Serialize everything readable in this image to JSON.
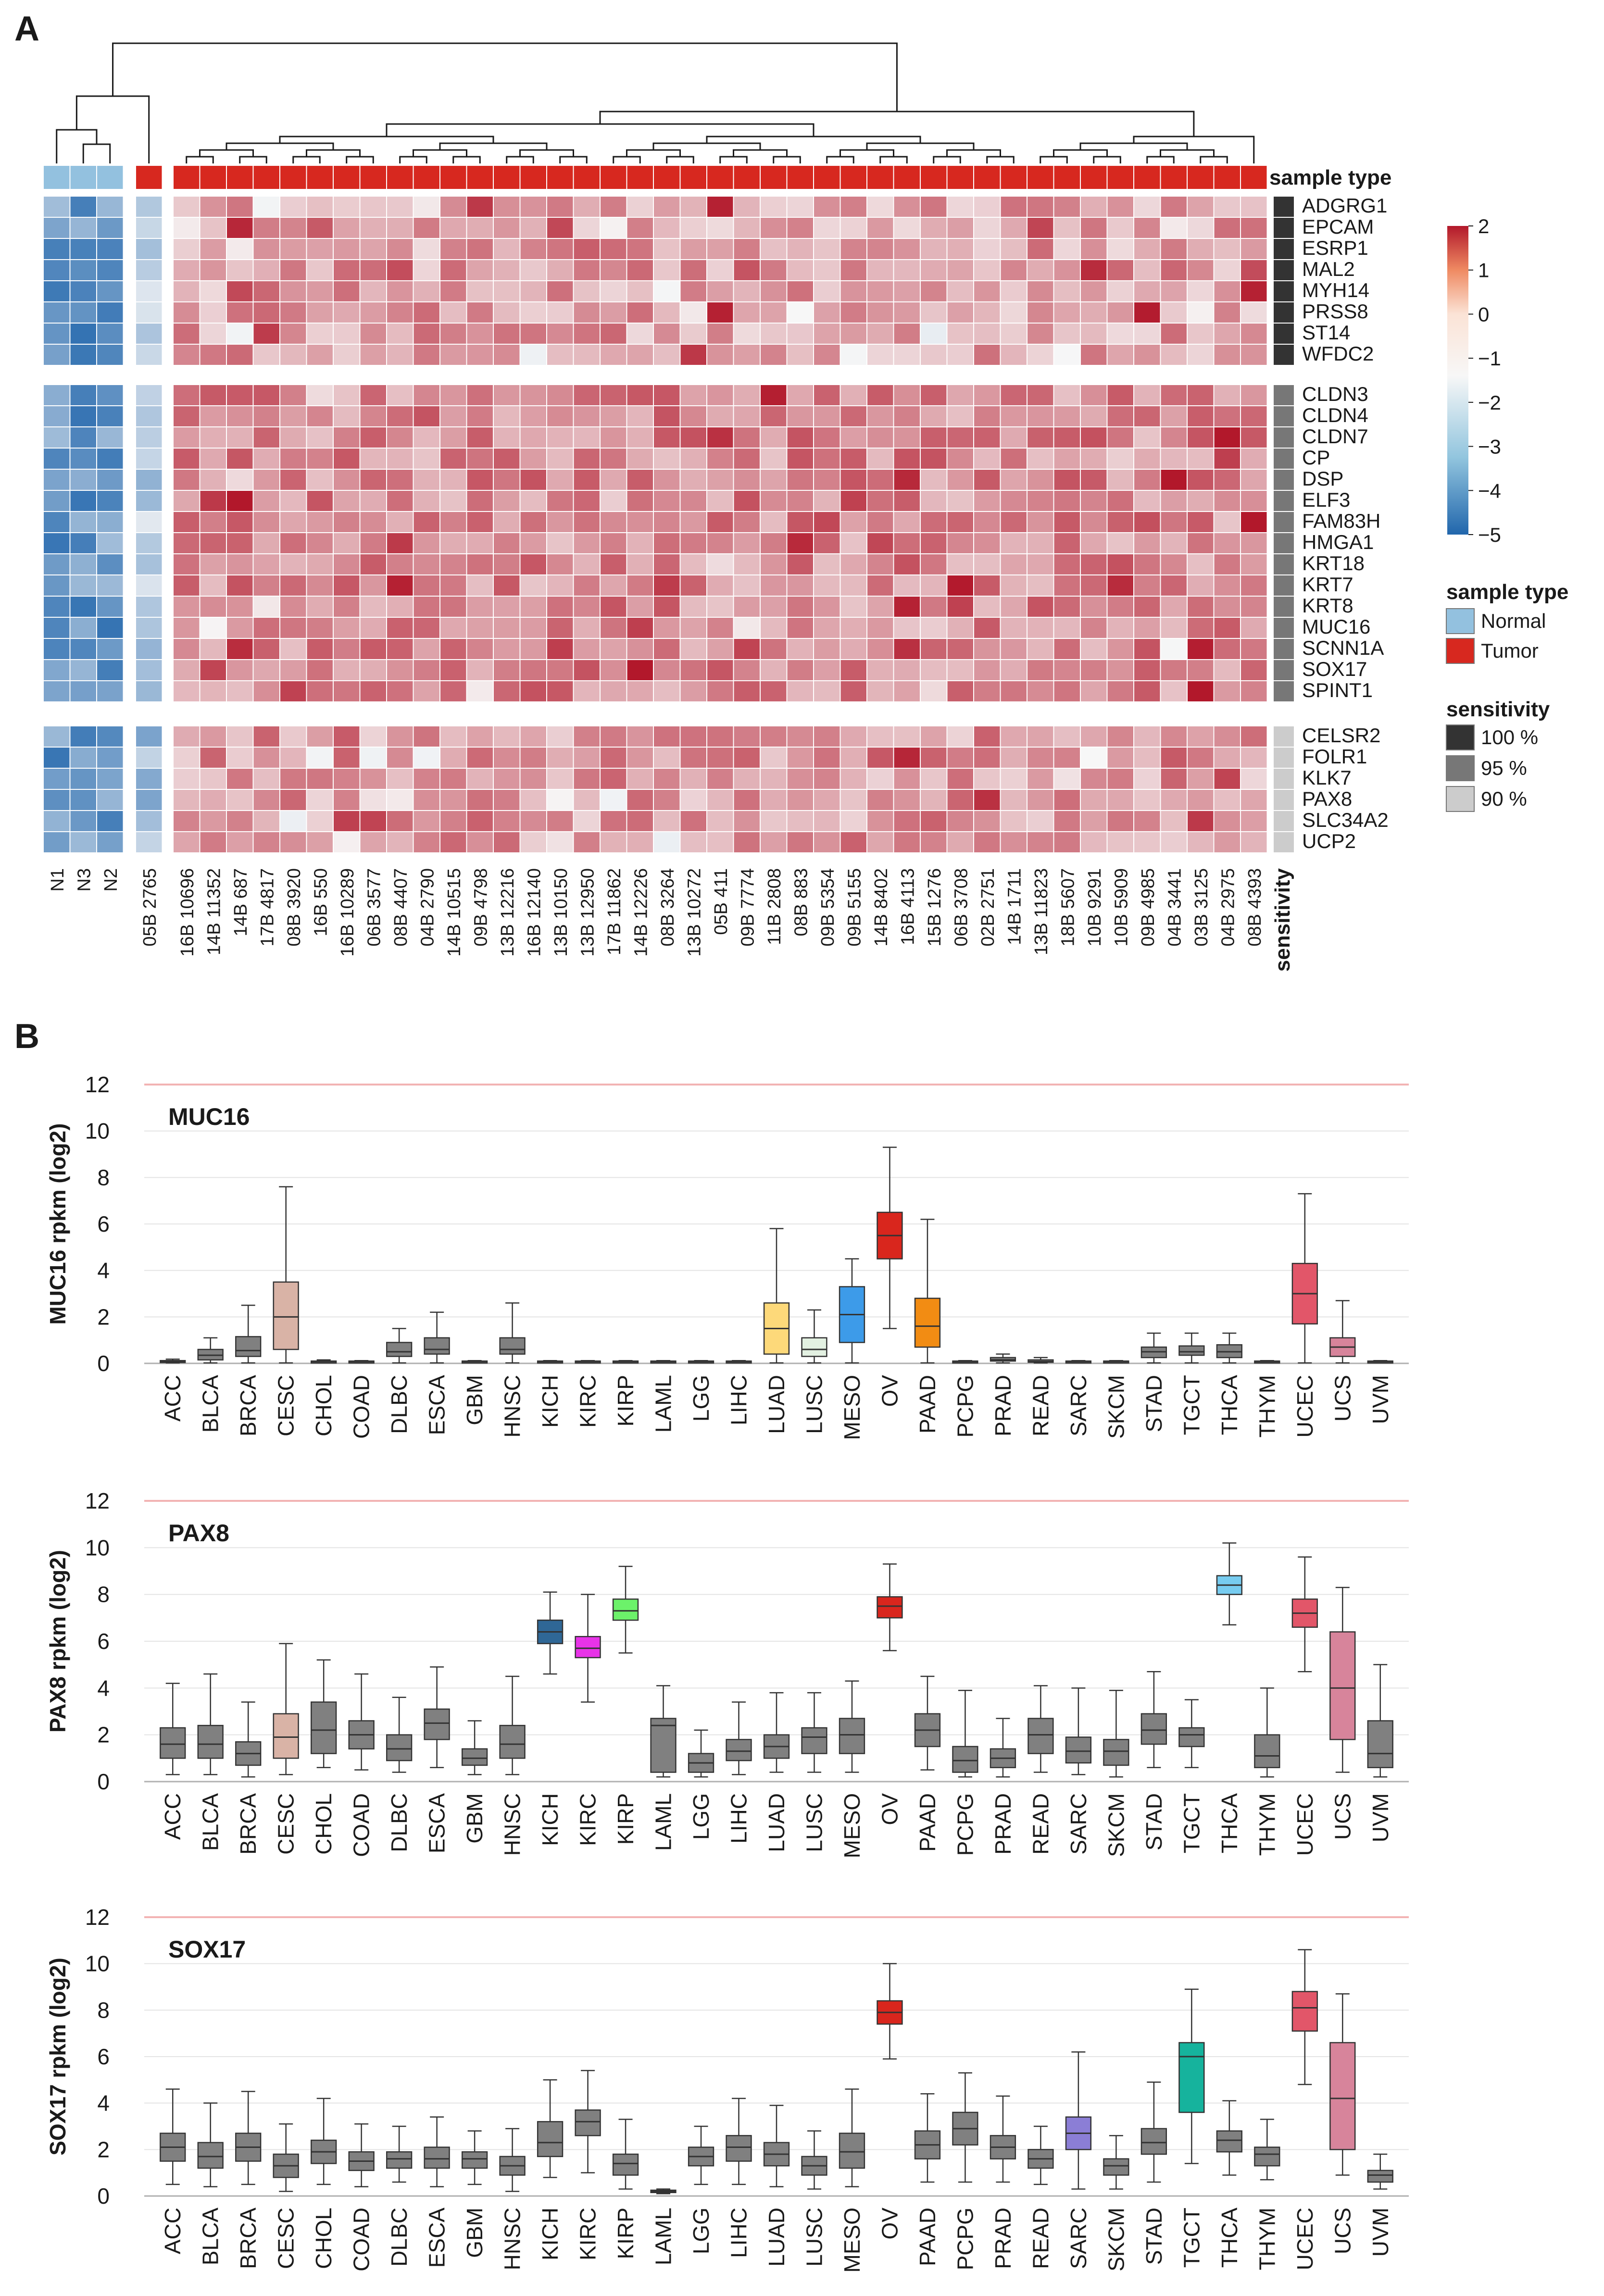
{
  "panels": {
    "a": "A",
    "b": "B"
  },
  "chart_data": [
    {
      "type": "heatmap",
      "panel": "A",
      "title": "",
      "annotation_track_label": "sample type",
      "sensitivity_axis_label": "sensitivity",
      "columns": [
        "N1",
        "N3",
        "N2",
        "05B 2765",
        "16B 10696",
        "14B 11352",
        "14B 687",
        "17B 4817",
        "08B 3920",
        "16B 550",
        "16B 10289",
        "06B 3577",
        "08B 4407",
        "04B 2790",
        "14B 10515",
        "09B 4798",
        "13B 12216",
        "16B 12140",
        "13B 10150",
        "13B 12950",
        "17B 11862",
        "14B 12226",
        "08B 3264",
        "13B 10272",
        "05B 411",
        "09B 7774",
        "11B 2808",
        "08B 883",
        "09B 5354",
        "09B 5155",
        "14B 8402",
        "16B 4113",
        "15B 1276",
        "06B 3708",
        "02B 2751",
        "14B 1711",
        "13B 11823",
        "18B 5607",
        "10B 9291",
        "10B 5909",
        "09B 4985",
        "04B 3441",
        "03B 3125",
        "04B 2975",
        "08B 4393"
      ],
      "column_groups": [
        3,
        1,
        41
      ],
      "sample_types": [
        "Normal",
        "Normal",
        "Normal",
        "Tumor",
        "Tumor",
        "Tumor",
        "Tumor",
        "Tumor",
        "Tumor",
        "Tumor",
        "Tumor",
        "Tumor",
        "Tumor",
        "Tumor",
        "Tumor",
        "Tumor",
        "Tumor",
        "Tumor",
        "Tumor",
        "Tumor",
        "Tumor",
        "Tumor",
        "Tumor",
        "Tumor",
        "Tumor",
        "Tumor",
        "Tumor",
        "Tumor",
        "Tumor",
        "Tumor",
        "Tumor",
        "Tumor",
        "Tumor",
        "Tumor",
        "Tumor",
        "Tumor",
        "Tumor",
        "Tumor",
        "Tumor",
        "Tumor",
        "Tumor",
        "Tumor",
        "Tumor",
        "Tumor",
        "Tumor"
      ],
      "row_groups": [
        {
          "sensitivity": "100 %",
          "genes": [
            "ADGRG1",
            "EPCAM",
            "ESRP1",
            "MAL2",
            "MYH14",
            "PRSS8",
            "ST14",
            "WFDC2"
          ]
        },
        {
          "sensitivity": "95 %",
          "genes": [
            "CLDN3",
            "CLDN4",
            "CLDN7",
            "CP",
            "DSP",
            "ELF3",
            "FAM83H",
            "HMGA1",
            "KRT18",
            "KRT7",
            "KRT8",
            "MUC16",
            "SCNN1A",
            "SOX17",
            "SPINT1"
          ]
        },
        {
          "sensitivity": "90 %",
          "genes": [
            "CELSR2",
            "FOLR1",
            "KLK7",
            "PAX8",
            "SLC34A2",
            "UCP2"
          ]
        }
      ],
      "color_scale": {
        "min": -5,
        "max": 2,
        "ticks": [
          "2",
          "1",
          "0",
          "−1",
          "−2",
          "−3",
          "−4",
          "−5"
        ],
        "low_color": "#2166ac",
        "mid_color": "#f7f7f7",
        "high_color": "#b2182b"
      },
      "value_summary": "Normal samples z-score about -2 to -4.5; sample 05B 2765 about -0.5 to -2.5; tumor samples mostly 0 to 2",
      "legend": {
        "sample_type_title": "sample type",
        "sample_type_entries": [
          {
            "label": "Normal",
            "color": "#93c1df"
          },
          {
            "label": "Tumor",
            "color": "#d7281f"
          }
        ],
        "sensitivity_title": "sensitivity",
        "sensitivity_entries": [
          {
            "label": "100 %",
            "color": "#333333"
          },
          {
            "label": "95 %",
            "color": "#777777"
          },
          {
            "label": "90 %",
            "color": "#cccccc"
          }
        ]
      }
    },
    {
      "type": "box",
      "panel": "B",
      "title": "MUC16",
      "ylabel": "MUC16 rpkm (log2)",
      "ylim": [
        0,
        12
      ],
      "yticks": [
        0,
        2,
        4,
        6,
        8,
        10,
        12
      ],
      "categories": [
        "ACC",
        "BLCA",
        "BRCA",
        "CESC",
        "CHOL",
        "COAD",
        "DLBC",
        "ESCA",
        "GBM",
        "HNSC",
        "KICH",
        "KIRC",
        "KIRP",
        "LAML",
        "LGG",
        "LIHC",
        "LUAD",
        "LUSC",
        "MESO",
        "OV",
        "PAAD",
        "PCPG",
        "PRAD",
        "READ",
        "SARC",
        "SKCM",
        "STAD",
        "TGCT",
        "THCA",
        "THYM",
        "UCEC",
        "UCS",
        "UVM"
      ],
      "boxes": [
        [
          0.02,
          0.05,
          0.08,
          0.12,
          0.18
        ],
        [
          0.02,
          0.15,
          0.35,
          0.6,
          1.1
        ],
        [
          0.02,
          0.3,
          0.55,
          1.15,
          2.5
        ],
        [
          0.02,
          0.6,
          2.0,
          3.5,
          7.6
        ],
        [
          0.02,
          0.05,
          0.08,
          0.1,
          0.15
        ],
        [
          0.02,
          0.05,
          0.08,
          0.1,
          0.12
        ],
        [
          0.02,
          0.3,
          0.5,
          0.9,
          1.5
        ],
        [
          0.02,
          0.4,
          0.6,
          1.1,
          2.2
        ],
        [
          0.02,
          0.05,
          0.08,
          0.1,
          0.12
        ],
        [
          0.02,
          0.4,
          0.6,
          1.1,
          2.6
        ],
        [
          0.02,
          0.05,
          0.08,
          0.1,
          0.12
        ],
        [
          0.02,
          0.05,
          0.08,
          0.1,
          0.12
        ],
        [
          0.02,
          0.05,
          0.08,
          0.1,
          0.12
        ],
        [
          0.02,
          0.05,
          0.08,
          0.1,
          0.12
        ],
        [
          0.02,
          0.05,
          0.08,
          0.1,
          0.12
        ],
        [
          0.02,
          0.05,
          0.08,
          0.1,
          0.12
        ],
        [
          0.02,
          0.4,
          1.5,
          2.6,
          5.8
        ],
        [
          0.02,
          0.3,
          0.6,
          1.1,
          2.3
        ],
        [
          0.02,
          0.9,
          2.1,
          3.3,
          4.5
        ],
        [
          1.5,
          4.5,
          5.5,
          6.5,
          9.3
        ],
        [
          0.02,
          0.7,
          1.6,
          2.8,
          6.2
        ],
        [
          0.02,
          0.05,
          0.08,
          0.1,
          0.12
        ],
        [
          0.02,
          0.1,
          0.15,
          0.25,
          0.4
        ],
        [
          0.02,
          0.05,
          0.08,
          0.15,
          0.25
        ],
        [
          0.02,
          0.05,
          0.08,
          0.1,
          0.12
        ],
        [
          0.02,
          0.05,
          0.08,
          0.1,
          0.12
        ],
        [
          0.02,
          0.25,
          0.5,
          0.7,
          1.3
        ],
        [
          0.02,
          0.35,
          0.5,
          0.75,
          1.3
        ],
        [
          0.02,
          0.25,
          0.5,
          0.8,
          1.3
        ],
        [
          0.02,
          0.05,
          0.08,
          0.1,
          0.12
        ],
        [
          0.02,
          1.7,
          3.0,
          4.3,
          7.3
        ],
        [
          0.02,
          0.3,
          0.7,
          1.1,
          2.7
        ],
        [
          0.02,
          0.05,
          0.08,
          0.1,
          0.12
        ]
      ],
      "colors": [
        "#808080",
        "#808080",
        "#808080",
        "#d9b3a6",
        "#808080",
        "#808080",
        "#808080",
        "#808080",
        "#808080",
        "#808080",
        "#808080",
        "#808080",
        "#808080",
        "#808080",
        "#808080",
        "#808080",
        "#fdd97a",
        "#e3f1e2",
        "#3d9be9",
        "#d9261d",
        "#f28c13",
        "#808080",
        "#808080",
        "#808080",
        "#808080",
        "#808080",
        "#808080",
        "#808080",
        "#808080",
        "#808080",
        "#e25669",
        "#d7849b",
        "#808080"
      ]
    },
    {
      "type": "box",
      "panel": "B",
      "title": "PAX8",
      "ylabel": "PAX8 rpkm (log2)",
      "ylim": [
        0,
        12
      ],
      "yticks": [
        0,
        2,
        4,
        6,
        8,
        10,
        12
      ],
      "categories": [
        "ACC",
        "BLCA",
        "BRCA",
        "CESC",
        "CHOL",
        "COAD",
        "DLBC",
        "ESCA",
        "GBM",
        "HNSC",
        "KICH",
        "KIRC",
        "KIRP",
        "LAML",
        "LGG",
        "LIHC",
        "LUAD",
        "LUSC",
        "MESO",
        "OV",
        "PAAD",
        "PCPG",
        "PRAD",
        "READ",
        "SARC",
        "SKCM",
        "STAD",
        "TGCT",
        "THCA",
        "THYM",
        "UCEC",
        "UCS",
        "UVM"
      ],
      "boxes": [
        [
          0.3,
          1.0,
          1.6,
          2.3,
          4.2
        ],
        [
          0.3,
          1.0,
          1.6,
          2.4,
          4.6
        ],
        [
          0.2,
          0.7,
          1.2,
          1.7,
          3.4
        ],
        [
          0.3,
          1.0,
          1.9,
          2.9,
          5.9
        ],
        [
          0.6,
          1.2,
          2.2,
          3.4,
          5.2
        ],
        [
          0.5,
          1.4,
          2.0,
          2.6,
          4.6
        ],
        [
          0.4,
          0.9,
          1.4,
          2.0,
          3.6
        ],
        [
          0.6,
          1.8,
          2.5,
          3.1,
          4.9
        ],
        [
          0.3,
          0.7,
          1.0,
          1.4,
          2.6
        ],
        [
          0.3,
          1.0,
          1.6,
          2.4,
          4.5
        ],
        [
          4.6,
          5.9,
          6.4,
          6.9,
          8.1
        ],
        [
          3.4,
          5.3,
          5.7,
          6.2,
          8.0
        ],
        [
          5.5,
          6.9,
          7.3,
          7.8,
          9.2
        ],
        [
          0.2,
          0.4,
          2.4,
          2.7,
          4.1
        ],
        [
          0.2,
          0.4,
          0.8,
          1.2,
          2.2
        ],
        [
          0.3,
          0.9,
          1.3,
          1.8,
          3.4
        ],
        [
          0.4,
          1.0,
          1.5,
          2.0,
          3.8
        ],
        [
          0.4,
          1.2,
          1.9,
          2.3,
          3.8
        ],
        [
          0.4,
          1.2,
          2.0,
          2.7,
          4.3
        ],
        [
          5.6,
          7.0,
          7.5,
          7.9,
          9.3
        ],
        [
          0.5,
          1.5,
          2.2,
          2.9,
          4.5
        ],
        [
          0.2,
          0.4,
          0.9,
          1.5,
          3.9
        ],
        [
          0.2,
          0.6,
          1.0,
          1.4,
          2.7
        ],
        [
          0.4,
          1.2,
          2.0,
          2.7,
          4.1
        ],
        [
          0.3,
          0.8,
          1.3,
          1.9,
          4.0
        ],
        [
          0.2,
          0.7,
          1.3,
          1.8,
          3.9
        ],
        [
          0.6,
          1.6,
          2.2,
          2.9,
          4.7
        ],
        [
          0.6,
          1.5,
          2.0,
          2.3,
          3.5
        ],
        [
          6.7,
          8.0,
          8.4,
          8.8,
          10.2
        ],
        [
          0.2,
          0.6,
          1.1,
          2.0,
          4.0
        ],
        [
          4.7,
          6.6,
          7.2,
          7.8,
          9.6
        ],
        [
          0.4,
          1.8,
          4.0,
          6.4,
          8.3
        ],
        [
          0.2,
          0.6,
          1.2,
          2.6,
          5.0
        ]
      ],
      "colors": [
        "#808080",
        "#808080",
        "#808080",
        "#d9b3a6",
        "#808080",
        "#808080",
        "#808080",
        "#808080",
        "#808080",
        "#808080",
        "#2f6796",
        "#e833e8",
        "#6cf26a",
        "#808080",
        "#808080",
        "#808080",
        "#808080",
        "#808080",
        "#808080",
        "#d9261d",
        "#808080",
        "#808080",
        "#808080",
        "#808080",
        "#808080",
        "#808080",
        "#808080",
        "#808080",
        "#77ccf0",
        "#808080",
        "#e25669",
        "#d7849b",
        "#808080"
      ]
    },
    {
      "type": "box",
      "panel": "B",
      "title": "SOX17",
      "ylabel": "SOX17 rpkm (log2)",
      "ylim": [
        0,
        12
      ],
      "yticks": [
        0,
        2,
        4,
        6,
        8,
        10,
        12
      ],
      "categories": [
        "ACC",
        "BLCA",
        "BRCA",
        "CESC",
        "CHOL",
        "COAD",
        "DLBC",
        "ESCA",
        "GBM",
        "HNSC",
        "KICH",
        "KIRC",
        "KIRP",
        "LAML",
        "LGG",
        "LIHC",
        "LUAD",
        "LUSC",
        "MESO",
        "OV",
        "PAAD",
        "PCPG",
        "PRAD",
        "READ",
        "SARC",
        "SKCM",
        "STAD",
        "TGCT",
        "THCA",
        "THYM",
        "UCEC",
        "UCS",
        "UVM"
      ],
      "boxes": [
        [
          0.5,
          1.5,
          2.1,
          2.7,
          4.6
        ],
        [
          0.4,
          1.2,
          1.7,
          2.3,
          4.0
        ],
        [
          0.5,
          1.5,
          2.1,
          2.7,
          4.5
        ],
        [
          0.2,
          0.8,
          1.3,
          1.8,
          3.1
        ],
        [
          0.5,
          1.4,
          1.9,
          2.4,
          4.2
        ],
        [
          0.4,
          1.1,
          1.5,
          1.9,
          3.1
        ],
        [
          0.6,
          1.2,
          1.6,
          1.9,
          3.0
        ],
        [
          0.4,
          1.2,
          1.6,
          2.1,
          3.4
        ],
        [
          0.5,
          1.2,
          1.6,
          1.9,
          2.8
        ],
        [
          0.2,
          0.9,
          1.3,
          1.7,
          2.9
        ],
        [
          0.8,
          1.7,
          2.3,
          3.2,
          5.0
        ],
        [
          1.0,
          2.6,
          3.2,
          3.7,
          5.4
        ],
        [
          0.3,
          0.9,
          1.4,
          1.8,
          3.3
        ],
        [
          0.1,
          0.15,
          0.2,
          0.25,
          0.3
        ],
        [
          0.5,
          1.3,
          1.7,
          2.1,
          3.0
        ],
        [
          0.5,
          1.5,
          2.1,
          2.6,
          4.2
        ],
        [
          0.4,
          1.3,
          1.8,
          2.3,
          3.9
        ],
        [
          0.3,
          0.9,
          1.3,
          1.7,
          2.8
        ],
        [
          0.4,
          1.2,
          1.9,
          2.7,
          4.6
        ],
        [
          5.9,
          7.4,
          7.9,
          8.4,
          10.0
        ],
        [
          0.6,
          1.6,
          2.2,
          2.8,
          4.4
        ],
        [
          0.6,
          2.2,
          2.9,
          3.6,
          5.3
        ],
        [
          0.6,
          1.6,
          2.1,
          2.6,
          4.3
        ],
        [
          0.5,
          1.2,
          1.6,
          2.0,
          3.0
        ],
        [
          0.3,
          2.0,
          2.7,
          3.4,
          6.2
        ],
        [
          0.3,
          0.9,
          1.3,
          1.6,
          2.6
        ],
        [
          0.6,
          1.8,
          2.3,
          2.9,
          4.9
        ],
        [
          1.4,
          3.6,
          6.0,
          6.6,
          8.9
        ],
        [
          0.9,
          1.9,
          2.4,
          2.8,
          4.1
        ],
        [
          0.7,
          1.3,
          1.8,
          2.1,
          3.3
        ],
        [
          4.8,
          7.1,
          8.1,
          8.8,
          10.6
        ],
        [
          0.9,
          2.0,
          4.2,
          6.6,
          8.7
        ],
        [
          0.3,
          0.6,
          0.9,
          1.1,
          1.8
        ]
      ],
      "colors": [
        "#808080",
        "#808080",
        "#808080",
        "#808080",
        "#808080",
        "#808080",
        "#808080",
        "#808080",
        "#808080",
        "#808080",
        "#808080",
        "#808080",
        "#808080",
        "#808080",
        "#808080",
        "#808080",
        "#808080",
        "#808080",
        "#808080",
        "#d9261d",
        "#808080",
        "#808080",
        "#808080",
        "#808080",
        "#8b7ed6",
        "#808080",
        "#808080",
        "#16b39d",
        "#808080",
        "#808080",
        "#e25669",
        "#d7849b",
        "#808080"
      ]
    }
  ]
}
